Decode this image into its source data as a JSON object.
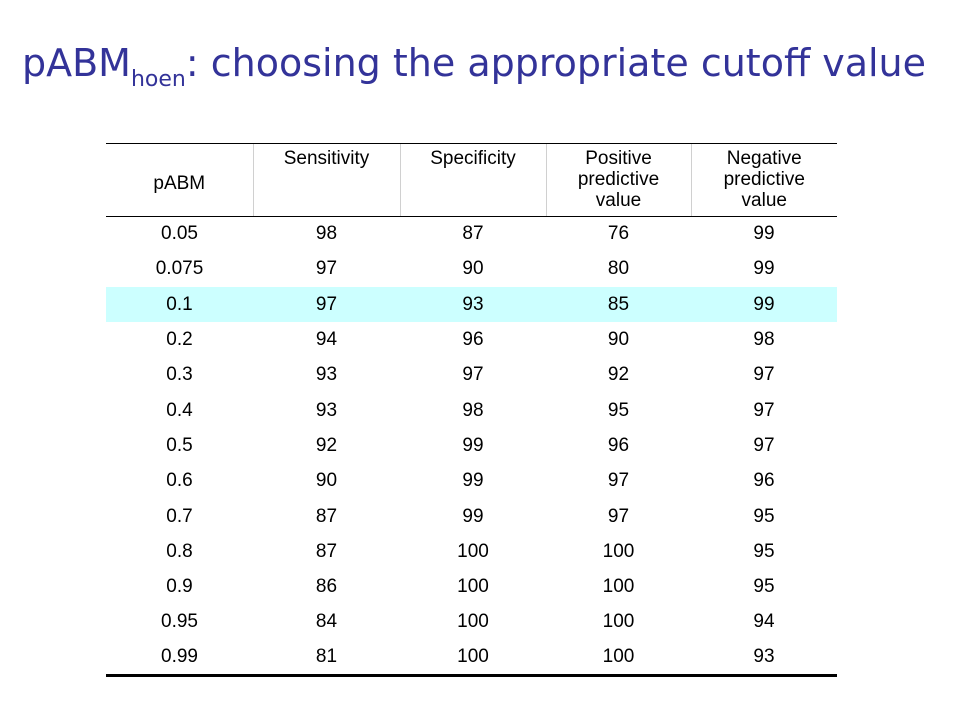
{
  "title": {
    "main": "pABM",
    "subscript": "hoen",
    "rest": ": choosing the appropriate cutoff value"
  },
  "table": {
    "headers": [
      [
        "pABM"
      ],
      [
        "Sensitivity"
      ],
      [
        "Specificity"
      ],
      [
        "Positive",
        "predictive",
        "value"
      ],
      [
        "Negative",
        "predictive",
        "value"
      ]
    ],
    "highlight_row_index": 2,
    "highlight_color": "#ccffff",
    "rows": [
      [
        "0.05",
        "98",
        "87",
        "76",
        "99"
      ],
      [
        "0.075",
        "97",
        "90",
        "80",
        "99"
      ],
      [
        "0.1",
        "97",
        "93",
        "85",
        "99"
      ],
      [
        "0.2",
        "94",
        "96",
        "90",
        "98"
      ],
      [
        "0.3",
        "93",
        "97",
        "92",
        "97"
      ],
      [
        "0.4",
        "93",
        "98",
        "95",
        "97"
      ],
      [
        "0.5",
        "92",
        "99",
        "96",
        "97"
      ],
      [
        "0.6",
        "90",
        "99",
        "97",
        "96"
      ],
      [
        "0.7",
        "87",
        "99",
        "97",
        "95"
      ],
      [
        "0.8",
        "87",
        "100",
        "100",
        "95"
      ],
      [
        "0.9",
        "86",
        "100",
        "100",
        "95"
      ],
      [
        "0.95",
        "84",
        "100",
        "100",
        "94"
      ],
      [
        "0.99",
        "81",
        "100",
        "100",
        "93"
      ]
    ]
  },
  "colors": {
    "title": "#333399"
  }
}
